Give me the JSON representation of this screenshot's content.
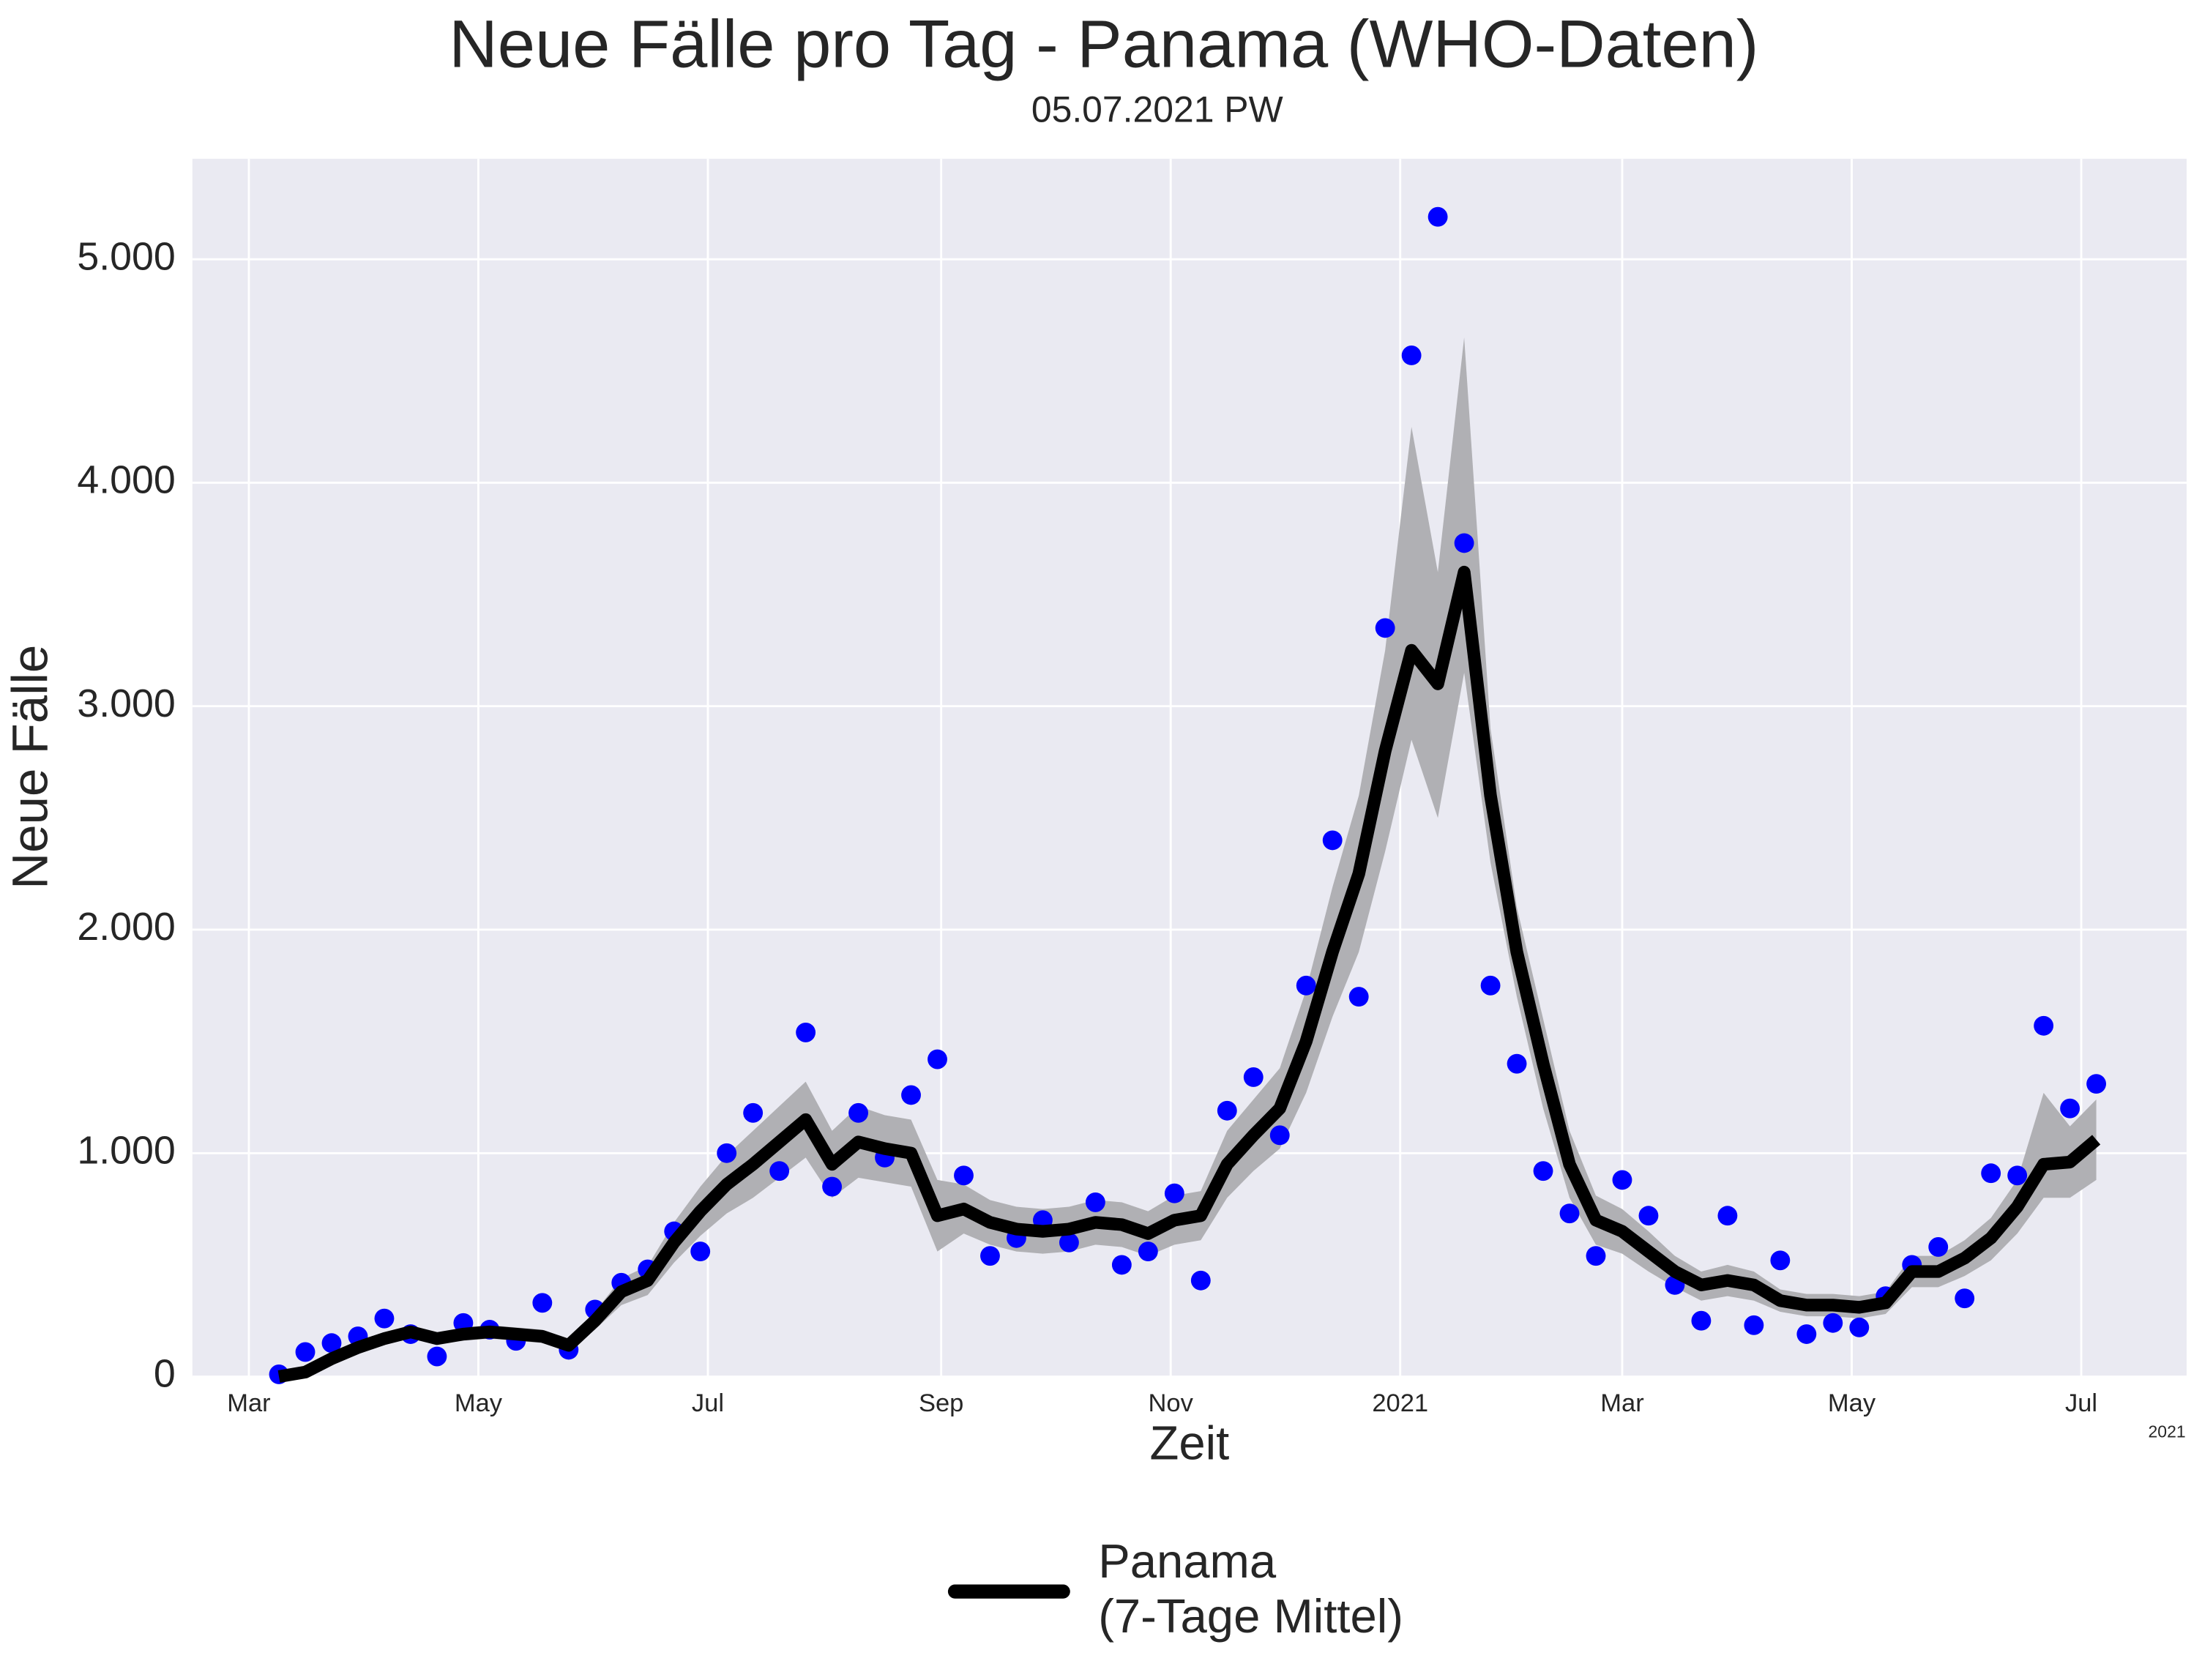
{
  "chart_data": {
    "type": "line",
    "title": "Neue Fälle pro Tag - Panama (WHO-Daten)",
    "subtitle": "05.07.2021 PW",
    "xlabel": "Zeit",
    "ylabel": "Neue Fälle",
    "x_offset_label": "2021",
    "x": [
      "2020-03-09",
      "2020-03-16",
      "2020-03-23",
      "2020-03-30",
      "2020-04-06",
      "2020-04-13",
      "2020-04-20",
      "2020-04-27",
      "2020-05-04",
      "2020-05-11",
      "2020-05-18",
      "2020-05-25",
      "2020-06-01",
      "2020-06-08",
      "2020-06-15",
      "2020-06-22",
      "2020-06-29",
      "2020-07-06",
      "2020-07-13",
      "2020-07-20",
      "2020-07-27",
      "2020-08-03",
      "2020-08-10",
      "2020-08-17",
      "2020-08-24",
      "2020-08-31",
      "2020-09-07",
      "2020-09-14",
      "2020-09-21",
      "2020-09-28",
      "2020-10-05",
      "2020-10-12",
      "2020-10-19",
      "2020-10-26",
      "2020-11-02",
      "2020-11-09",
      "2020-11-16",
      "2020-11-23",
      "2020-11-30",
      "2020-12-07",
      "2020-12-14",
      "2020-12-21",
      "2020-12-28",
      "2021-01-04",
      "2021-01-11",
      "2021-01-18",
      "2021-01-25",
      "2021-02-01",
      "2021-02-08",
      "2021-02-15",
      "2021-02-22",
      "2021-03-01",
      "2021-03-08",
      "2021-03-15",
      "2021-03-22",
      "2021-03-29",
      "2021-04-05",
      "2021-04-12",
      "2021-04-19",
      "2021-04-26",
      "2021-05-03",
      "2021-05-10",
      "2021-05-17",
      "2021-05-24",
      "2021-05-31",
      "2021-06-07",
      "2021-06-14",
      "2021-06-21",
      "2021-06-28",
      "2021-07-05"
    ],
    "series": [
      {
        "name": "Panama\n(7-Tage Mittel)",
        "color": "#000000",
        "values": [
          0,
          20,
          80,
          130,
          170,
          200,
          170,
          190,
          200,
          190,
          180,
          140,
          250,
          380,
          430,
          600,
          740,
          860,
          950,
          1050,
          1150,
          950,
          1050,
          1020,
          1000,
          720,
          750,
          690,
          660,
          650,
          660,
          690,
          680,
          640,
          700,
          720,
          950,
          1080,
          1200,
          1500,
          1900,
          2250,
          2800,
          3250,
          3100,
          3600,
          2600,
          1900,
          1400,
          950,
          700,
          650,
          560,
          470,
          410,
          430,
          410,
          340,
          320,
          320,
          310,
          330,
          470,
          470,
          530,
          620,
          760,
          950,
          960,
          1060
        ]
      }
    ],
    "scatter": {
      "color": "#0000ff",
      "values": [
        10,
        110,
        150,
        180,
        260,
        190,
        90,
        240,
        210,
        160,
        330,
        120,
        300,
        420,
        480,
        650,
        560,
        1000,
        1180,
        920,
        1540,
        850,
        1180,
        980,
        1260,
        1420,
        900,
        540,
        620,
        700,
        600,
        780,
        500,
        560,
        820,
        430,
        1190,
        1340,
        1080,
        1750,
        2400,
        1700,
        3350,
        4570,
        5190,
        3730,
        1750,
        1400,
        920,
        730,
        540,
        880,
        720,
        410,
        250,
        720,
        230,
        520,
        190,
        240,
        220,
        360,
        500,
        580,
        350,
        910,
        900,
        1570,
        1200,
        1310
      ]
    },
    "band": {
      "color": "#b0b0b4",
      "lower": [
        0,
        15,
        65,
        110,
        145,
        170,
        145,
        160,
        170,
        160,
        150,
        115,
        210,
        320,
        365,
        510,
        630,
        730,
        800,
        890,
        980,
        800,
        890,
        870,
        850,
        560,
        640,
        590,
        560,
        550,
        560,
        590,
        580,
        540,
        590,
        610,
        800,
        920,
        1020,
        1270,
        1610,
        1900,
        2350,
        2850,
        2500,
        3150,
        2300,
        1700,
        1200,
        800,
        590,
        550,
        470,
        400,
        340,
        360,
        340,
        290,
        270,
        270,
        260,
        280,
        400,
        400,
        450,
        520,
        640,
        800,
        800,
        880
      ],
      "upper": [
        0,
        25,
        95,
        150,
        195,
        230,
        195,
        220,
        230,
        220,
        210,
        165,
        290,
        440,
        495,
        690,
        850,
        990,
        1100,
        1210,
        1320,
        1100,
        1210,
        1170,
        1150,
        880,
        860,
        790,
        760,
        750,
        760,
        790,
        780,
        740,
        810,
        830,
        1100,
        1240,
        1380,
        1730,
        2190,
        2600,
        3250,
        4250,
        3600,
        4650,
        2900,
        2100,
        1600,
        1100,
        810,
        750,
        650,
        540,
        470,
        500,
        470,
        390,
        370,
        370,
        360,
        380,
        540,
        540,
        610,
        710,
        880,
        1270,
        1120,
        1240
      ]
    },
    "xlim": [
      "2020-02-15",
      "2021-07-29"
    ],
    "xticks": [
      {
        "value": "2020-03-01",
        "label": "Mar"
      },
      {
        "value": "2020-05-01",
        "label": "May"
      },
      {
        "value": "2020-07-01",
        "label": "Jul"
      },
      {
        "value": "2020-09-01",
        "label": "Sep"
      },
      {
        "value": "2020-11-01",
        "label": "Nov"
      },
      {
        "value": "2021-01-01",
        "label": "2021"
      },
      {
        "value": "2021-03-01",
        "label": "Mar"
      },
      {
        "value": "2021-05-01",
        "label": "May"
      },
      {
        "value": "2021-07-01",
        "label": "Jul"
      }
    ],
    "ylim": [
      0,
      5450
    ],
    "yticks": [
      0,
      {
        "value": 1000,
        "label": "1.000"
      },
      {
        "value": 2000,
        "label": "2.000"
      },
      {
        "value": 3000,
        "label": "3.000"
      },
      {
        "value": 4000,
        "label": "4.000"
      },
      {
        "value": 5000,
        "label": "5.000"
      }
    ],
    "grid": true,
    "legend": "bottom"
  }
}
